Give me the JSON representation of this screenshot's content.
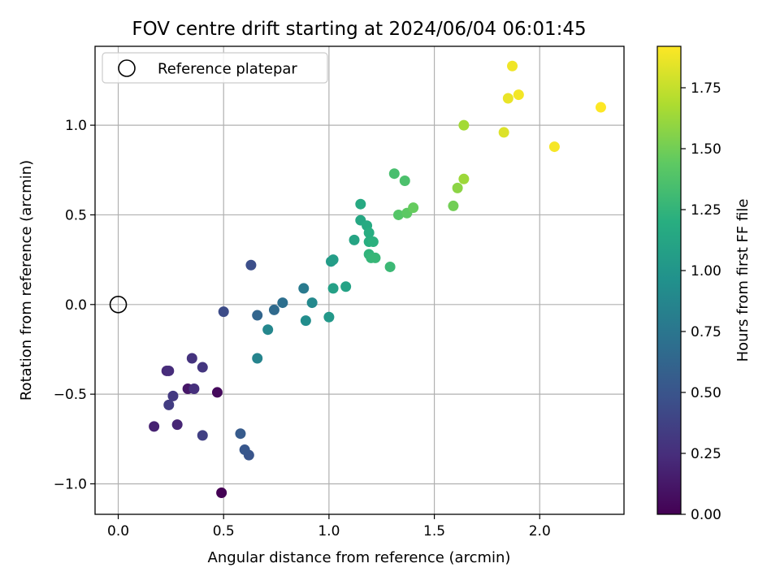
{
  "chart_data": {
    "type": "scatter",
    "title": "FOV centre drift starting at 2024/06/04 06:01:45",
    "xlabel": "Angular distance from reference (arcmin)",
    "ylabel": "Rotation from reference (arcmin)",
    "xlim": [
      -0.11,
      2.4
    ],
    "ylim": [
      -1.17,
      1.44
    ],
    "xticks": [
      0.0,
      0.5,
      1.0,
      1.5,
      2.0
    ],
    "xtick_labels": [
      "0.0",
      "0.5",
      "1.0",
      "1.5",
      "2.0"
    ],
    "yticks": [
      -1.0,
      -0.5,
      0.0,
      0.5,
      1.0
    ],
    "ytick_labels": [
      "−1.0",
      "−0.5",
      "0.0",
      "0.5",
      "1.0"
    ],
    "grid": true,
    "colormap": "viridis",
    "legend": {
      "placement": "upper-left",
      "label": "Reference platepar"
    },
    "reference_point": {
      "x": 0.0,
      "y": 0.0,
      "label": "Reference platepar"
    },
    "colorbar": {
      "label": "Hours from first FF file",
      "min": 0.0,
      "max": 1.92,
      "ticks": [
        0.0,
        0.25,
        0.5,
        0.75,
        1.0,
        1.25,
        1.5,
        1.75
      ],
      "tick_labels": [
        "0.00",
        "0.25",
        "0.50",
        "0.75",
        "1.00",
        "1.25",
        "1.50",
        "1.75"
      ]
    },
    "points": [
      {
        "x": 0.49,
        "y": -1.05,
        "c": 0.0
      },
      {
        "x": 0.47,
        "y": -0.49,
        "c": 0.05
      },
      {
        "x": 0.33,
        "y": -0.47,
        "c": 0.12
      },
      {
        "x": 0.17,
        "y": -0.68,
        "c": 0.18
      },
      {
        "x": 0.28,
        "y": -0.67,
        "c": 0.2
      },
      {
        "x": 0.23,
        "y": -0.37,
        "c": 0.22
      },
      {
        "x": 0.24,
        "y": -0.37,
        "c": 0.24
      },
      {
        "x": 0.36,
        "y": -0.47,
        "c": 0.26
      },
      {
        "x": 0.35,
        "y": -0.3,
        "c": 0.28
      },
      {
        "x": 0.4,
        "y": -0.35,
        "c": 0.3
      },
      {
        "x": 0.26,
        "y": -0.51,
        "c": 0.32
      },
      {
        "x": 0.24,
        "y": -0.56,
        "c": 0.34
      },
      {
        "x": 0.4,
        "y": -0.73,
        "c": 0.36
      },
      {
        "x": 0.5,
        "y": -0.04,
        "c": 0.44
      },
      {
        "x": 0.63,
        "y": 0.22,
        "c": 0.46
      },
      {
        "x": 0.62,
        "y": -0.84,
        "c": 0.5
      },
      {
        "x": 0.6,
        "y": -0.81,
        "c": 0.52
      },
      {
        "x": 0.58,
        "y": -0.72,
        "c": 0.55
      },
      {
        "x": 0.66,
        "y": -0.06,
        "c": 0.62
      },
      {
        "x": 0.74,
        "y": -0.03,
        "c": 0.66
      },
      {
        "x": 0.78,
        "y": 0.01,
        "c": 0.7
      },
      {
        "x": 0.88,
        "y": 0.09,
        "c": 0.78
      },
      {
        "x": 0.66,
        "y": -0.3,
        "c": 0.86
      },
      {
        "x": 0.71,
        "y": -0.14,
        "c": 0.88
      },
      {
        "x": 0.92,
        "y": 0.01,
        "c": 0.9
      },
      {
        "x": 0.89,
        "y": -0.09,
        "c": 0.93
      },
      {
        "x": 1.0,
        "y": -0.07,
        "c": 1.02
      },
      {
        "x": 1.01,
        "y": 0.24,
        "c": 1.04
      },
      {
        "x": 1.02,
        "y": 0.25,
        "c": 1.06
      },
      {
        "x": 1.02,
        "y": 0.09,
        "c": 1.08
      },
      {
        "x": 1.08,
        "y": 0.1,
        "c": 1.1
      },
      {
        "x": 1.12,
        "y": 0.36,
        "c": 1.12
      },
      {
        "x": 1.15,
        "y": 0.47,
        "c": 1.14
      },
      {
        "x": 1.15,
        "y": 0.56,
        "c": 1.16
      },
      {
        "x": 1.18,
        "y": 0.44,
        "c": 1.17
      },
      {
        "x": 1.19,
        "y": 0.4,
        "c": 1.19
      },
      {
        "x": 1.19,
        "y": 0.35,
        "c": 1.2
      },
      {
        "x": 1.21,
        "y": 0.35,
        "c": 1.22
      },
      {
        "x": 1.19,
        "y": 0.28,
        "c": 1.24
      },
      {
        "x": 1.2,
        "y": 0.26,
        "c": 1.26
      },
      {
        "x": 1.22,
        "y": 0.26,
        "c": 1.27
      },
      {
        "x": 1.29,
        "y": 0.21,
        "c": 1.29
      },
      {
        "x": 1.31,
        "y": 0.73,
        "c": 1.34
      },
      {
        "x": 1.36,
        "y": 0.69,
        "c": 1.36
      },
      {
        "x": 1.33,
        "y": 0.5,
        "c": 1.4
      },
      {
        "x": 1.37,
        "y": 0.51,
        "c": 1.43
      },
      {
        "x": 1.4,
        "y": 0.54,
        "c": 1.46
      },
      {
        "x": 1.59,
        "y": 0.55,
        "c": 1.5
      },
      {
        "x": 1.61,
        "y": 0.65,
        "c": 1.58
      },
      {
        "x": 1.64,
        "y": 0.7,
        "c": 1.63
      },
      {
        "x": 1.64,
        "y": 1.0,
        "c": 1.65
      },
      {
        "x": 1.83,
        "y": 0.96,
        "c": 1.82
      },
      {
        "x": 1.85,
        "y": 1.15,
        "c": 1.86
      },
      {
        "x": 1.87,
        "y": 1.33,
        "c": 1.88
      },
      {
        "x": 1.9,
        "y": 1.17,
        "c": 1.89
      },
      {
        "x": 2.07,
        "y": 0.88,
        "c": 1.9
      },
      {
        "x": 2.29,
        "y": 1.1,
        "c": 1.92
      }
    ]
  }
}
